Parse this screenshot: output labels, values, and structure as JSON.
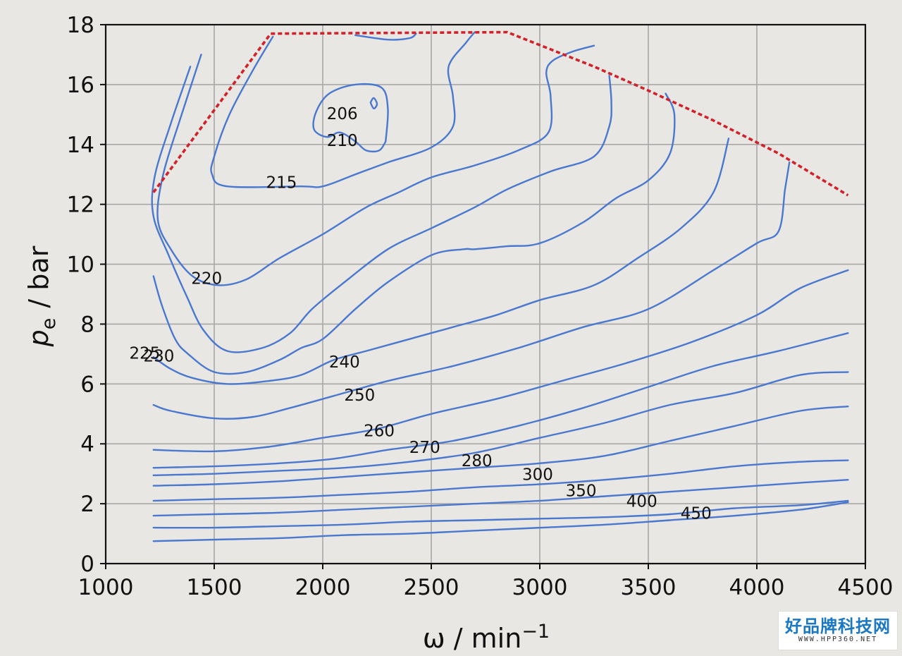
{
  "chart_data": {
    "type": "contour",
    "xlabel": "ω / min",
    "xlabel_exp": "−1",
    "ylabel_main": "p",
    "ylabel_sub": "e",
    "ylabel_rest": "/ bar",
    "xlim": [
      1000,
      4500
    ],
    "ylim": [
      0,
      18
    ],
    "xticks": [
      1000,
      1500,
      2000,
      2500,
      3000,
      3500,
      4000,
      4500
    ],
    "yticks": [
      0,
      2,
      4,
      6,
      8,
      10,
      12,
      14,
      16,
      18
    ],
    "grid": true,
    "contour_color": "#4a78cf",
    "limit_color": "#d0222a",
    "full_load_curve": [
      [
        1220,
        12.4
      ],
      [
        1760,
        17.7
      ],
      [
        2850,
        17.75
      ],
      [
        3250,
        16.6
      ],
      [
        3500,
        15.8
      ],
      [
        3800,
        14.8
      ],
      [
        4100,
        13.7
      ],
      [
        4420,
        12.3
      ]
    ],
    "contours": [
      {
        "label": "206",
        "label_at": [
          2090,
          15.0
        ],
        "closed": true,
        "points": [
          [
            2220,
            15.4
          ],
          [
            2235,
            15.55
          ],
          [
            2250,
            15.35
          ],
          [
            2235,
            15.2
          ],
          [
            2220,
            15.4
          ]
        ]
      },
      {
        "label": "210",
        "label_at": [
          2090,
          14.1
        ],
        "closed": false,
        "points": [
          [
            2290,
            14.1
          ],
          [
            2260,
            13.8
          ],
          [
            2200,
            13.8
          ],
          [
            2150,
            14.1
          ],
          [
            2080,
            14.4
          ],
          [
            2020,
            14.25
          ],
          [
            1960,
            14.5
          ],
          [
            1970,
            15.1
          ],
          [
            2030,
            15.7
          ],
          [
            2150,
            16.0
          ],
          [
            2270,
            15.9
          ],
          [
            2300,
            15.2
          ],
          [
            2290,
            14.1
          ]
        ]
      },
      {
        "label": "215",
        "label_at": [
          1810,
          12.7
        ],
        "closed": false,
        "points": [
          [
            1770,
            17.6
          ],
          [
            1680,
            16.5
          ],
          [
            1570,
            15.0
          ],
          [
            1500,
            13.6
          ],
          [
            1490,
            13.0
          ],
          [
            1560,
            12.6
          ],
          [
            1900,
            12.6
          ],
          [
            2000,
            12.6
          ],
          [
            2150,
            13.0
          ],
          [
            2300,
            13.4
          ],
          [
            2500,
            13.9
          ],
          [
            2600,
            14.6
          ],
          [
            2600,
            15.6
          ],
          [
            2580,
            16.6
          ],
          [
            2660,
            17.4
          ],
          [
            2700,
            17.75
          ]
        ]
      },
      {
        "label": "220",
        "label_at": [
          1465,
          9.5
        ],
        "closed": false,
        "points": [
          [
            1440,
            17.0
          ],
          [
            1350,
            15.0
          ],
          [
            1265,
            13.0
          ],
          [
            1240,
            11.5
          ],
          [
            1300,
            10.5
          ],
          [
            1400,
            9.6
          ],
          [
            1520,
            9.3
          ],
          [
            1650,
            9.5
          ],
          [
            1800,
            10.2
          ],
          [
            2000,
            11.0
          ],
          [
            2200,
            11.9
          ],
          [
            2350,
            12.4
          ],
          [
            2500,
            12.9
          ],
          [
            2700,
            13.3
          ],
          [
            2900,
            13.8
          ],
          [
            3040,
            14.4
          ],
          [
            3050,
            15.6
          ],
          [
            3030,
            16.4
          ],
          [
            3060,
            16.8
          ],
          [
            3150,
            17.1
          ],
          [
            3250,
            17.3
          ]
        ]
      },
      {
        "label": "225",
        "label_at": [
          1180,
          7.0
        ],
        "closed": false,
        "points": [
          [
            1390,
            16.6
          ],
          [
            1300,
            14.7
          ],
          [
            1225,
            12.9
          ],
          [
            1220,
            11.6
          ],
          [
            1290,
            10.3
          ],
          [
            1375,
            8.9
          ],
          [
            1450,
            7.8
          ],
          [
            1560,
            7.1
          ],
          [
            1720,
            7.2
          ],
          [
            1850,
            7.7
          ],
          [
            1950,
            8.5
          ],
          [
            2100,
            9.4
          ],
          [
            2300,
            10.5
          ],
          [
            2500,
            11.2
          ],
          [
            2700,
            11.9
          ],
          [
            2850,
            12.5
          ],
          [
            3050,
            13.1
          ],
          [
            3250,
            13.6
          ],
          [
            3320,
            14.6
          ],
          [
            3330,
            15.4
          ],
          [
            3320,
            16.3
          ]
        ]
      },
      {
        "label": "230",
        "label_at": [
          1245,
          6.9
        ],
        "closed": false,
        "points": [
          [
            1220,
            9.6
          ],
          [
            1260,
            8.6
          ],
          [
            1320,
            7.5
          ],
          [
            1380,
            7.0
          ],
          [
            1500,
            6.4
          ],
          [
            1650,
            6.4
          ],
          [
            1800,
            6.8
          ],
          [
            1900,
            7.2
          ],
          [
            2000,
            7.5
          ],
          [
            2150,
            8.5
          ],
          [
            2300,
            9.4
          ],
          [
            2500,
            10.3
          ],
          [
            2650,
            10.5
          ],
          [
            2700,
            10.5
          ],
          [
            2850,
            10.6
          ],
          [
            3000,
            10.7
          ],
          [
            3200,
            11.4
          ],
          [
            3350,
            12.2
          ],
          [
            3500,
            12.8
          ],
          [
            3600,
            13.7
          ],
          [
            3620,
            15.0
          ],
          [
            3580,
            15.7
          ]
        ]
      },
      {
        "label": "240",
        "label_at": [
          2100,
          6.7
        ],
        "closed": false,
        "points": [
          [
            1220,
            6.9
          ],
          [
            1300,
            6.5
          ],
          [
            1400,
            6.2
          ],
          [
            1560,
            6.0
          ],
          [
            1750,
            6.1
          ],
          [
            1900,
            6.3
          ],
          [
            2050,
            6.8
          ],
          [
            2200,
            7.1
          ],
          [
            2400,
            7.5
          ],
          [
            2600,
            7.9
          ],
          [
            2800,
            8.3
          ],
          [
            3000,
            8.8
          ],
          [
            3250,
            9.3
          ],
          [
            3450,
            10.2
          ],
          [
            3650,
            11.2
          ],
          [
            3800,
            12.4
          ],
          [
            3870,
            14.2
          ]
        ]
      },
      {
        "label": "250",
        "label_at": [
          2170,
          5.6
        ],
        "closed": false,
        "points": [
          [
            1220,
            5.3
          ],
          [
            1300,
            5.1
          ],
          [
            1500,
            4.85
          ],
          [
            1680,
            4.9
          ],
          [
            1850,
            5.2
          ],
          [
            2050,
            5.6
          ],
          [
            2300,
            6.1
          ],
          [
            2600,
            6.6
          ],
          [
            2900,
            7.2
          ],
          [
            3200,
            7.9
          ],
          [
            3500,
            8.5
          ],
          [
            3800,
            9.8
          ],
          [
            4000,
            10.7
          ],
          [
            4100,
            11.1
          ],
          [
            4130,
            12.5
          ],
          [
            4150,
            13.4
          ]
        ]
      },
      {
        "label": "260",
        "label_at": [
          2260,
          4.4
        ],
        "closed": false,
        "points": [
          [
            1220,
            3.8
          ],
          [
            1500,
            3.75
          ],
          [
            1750,
            3.9
          ],
          [
            2000,
            4.2
          ],
          [
            2250,
            4.5
          ],
          [
            2500,
            5.0
          ],
          [
            2800,
            5.5
          ],
          [
            3100,
            6.1
          ],
          [
            3400,
            6.7
          ],
          [
            3700,
            7.4
          ],
          [
            4000,
            8.3
          ],
          [
            4200,
            9.2
          ],
          [
            4420,
            9.8
          ]
        ]
      },
      {
        "label": "270",
        "label_at": [
          2470,
          3.85
        ],
        "closed": false,
        "points": [
          [
            1220,
            3.2
          ],
          [
            1500,
            3.25
          ],
          [
            1800,
            3.35
          ],
          [
            2050,
            3.5
          ],
          [
            2300,
            3.8
          ],
          [
            2600,
            4.1
          ],
          [
            2900,
            4.6
          ],
          [
            3200,
            5.2
          ],
          [
            3500,
            5.9
          ],
          [
            3800,
            6.6
          ],
          [
            4100,
            7.1
          ],
          [
            4420,
            7.7
          ]
        ]
      },
      {
        "label": "280",
        "label_at": [
          2710,
          3.4
        ],
        "closed": false,
        "points": [
          [
            1220,
            2.95
          ],
          [
            1500,
            3.0
          ],
          [
            1800,
            3.1
          ],
          [
            2100,
            3.2
          ],
          [
            2400,
            3.4
          ],
          [
            2700,
            3.7
          ],
          [
            3000,
            4.2
          ],
          [
            3300,
            4.7
          ],
          [
            3600,
            5.3
          ],
          [
            3900,
            5.7
          ],
          [
            4200,
            6.3
          ],
          [
            4420,
            6.4
          ]
        ]
      },
      {
        "label": "300",
        "label_at": [
          2990,
          2.95
        ],
        "closed": false,
        "points": [
          [
            1220,
            2.6
          ],
          [
            1500,
            2.65
          ],
          [
            1800,
            2.75
          ],
          [
            2100,
            2.9
          ],
          [
            2400,
            3.05
          ],
          [
            2700,
            3.2
          ],
          [
            3000,
            3.35
          ],
          [
            3300,
            3.6
          ],
          [
            3600,
            4.1
          ],
          [
            3900,
            4.6
          ],
          [
            4200,
            5.1
          ],
          [
            4420,
            5.25
          ]
        ]
      },
      {
        "label": "350",
        "label_at": [
          3190,
          2.4
        ],
        "closed": false,
        "points": [
          [
            1220,
            2.1
          ],
          [
            1500,
            2.15
          ],
          [
            1800,
            2.2
          ],
          [
            2100,
            2.3
          ],
          [
            2400,
            2.4
          ],
          [
            2700,
            2.55
          ],
          [
            3000,
            2.65
          ],
          [
            3300,
            2.8
          ],
          [
            3600,
            3.0
          ],
          [
            3900,
            3.25
          ],
          [
            4200,
            3.4
          ],
          [
            4420,
            3.45
          ]
        ]
      },
      {
        "label": "400",
        "label_at": [
          3470,
          2.05
        ],
        "closed": false,
        "points": [
          [
            1220,
            1.6
          ],
          [
            1500,
            1.65
          ],
          [
            1800,
            1.7
          ],
          [
            2100,
            1.8
          ],
          [
            2400,
            1.9
          ],
          [
            2700,
            2.0
          ],
          [
            3000,
            2.1
          ],
          [
            3300,
            2.25
          ],
          [
            3600,
            2.4
          ],
          [
            3900,
            2.55
          ],
          [
            4200,
            2.7
          ],
          [
            4420,
            2.8
          ]
        ]
      },
      {
        "label": "450",
        "label_at": [
          3720,
          1.65
        ],
        "closed": false,
        "points": [
          [
            1220,
            1.2
          ],
          [
            1500,
            1.2
          ],
          [
            1800,
            1.25
          ],
          [
            2100,
            1.3
          ],
          [
            2400,
            1.4
          ],
          [
            2700,
            1.45
          ],
          [
            3000,
            1.5
          ],
          [
            3300,
            1.55
          ],
          [
            3600,
            1.65
          ],
          [
            3900,
            1.85
          ],
          [
            4200,
            1.95
          ],
          [
            4420,
            2.1
          ]
        ]
      },
      {
        "label": "",
        "closed": false,
        "points": [
          [
            1220,
            0.75
          ],
          [
            1500,
            0.8
          ],
          [
            1800,
            0.85
          ],
          [
            2100,
            0.95
          ],
          [
            2400,
            1.0
          ],
          [
            2700,
            1.1
          ],
          [
            3000,
            1.2
          ],
          [
            3300,
            1.3
          ],
          [
            3600,
            1.45
          ],
          [
            3900,
            1.6
          ],
          [
            4200,
            1.8
          ],
          [
            4420,
            2.05
          ]
        ]
      },
      {
        "label": "",
        "closed": false,
        "points": [
          [
            2150,
            17.65
          ],
          [
            2300,
            17.5
          ],
          [
            2400,
            17.55
          ],
          [
            2430,
            17.7
          ]
        ]
      }
    ]
  },
  "watermark": {
    "main": "好品牌科技网",
    "sub": "WWW.HPP360.NET"
  }
}
